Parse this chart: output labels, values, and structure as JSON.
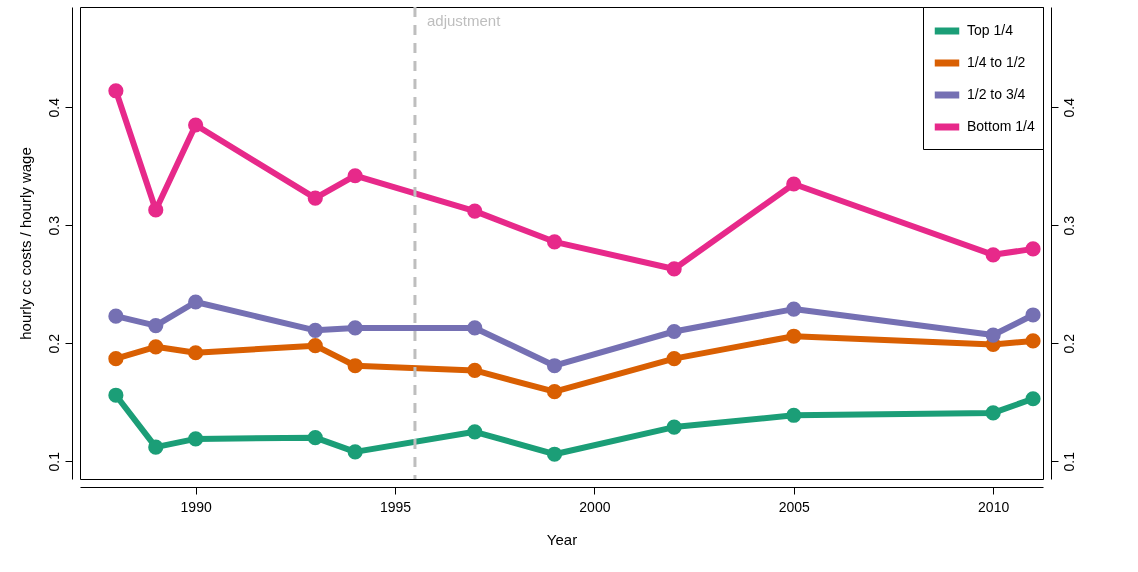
{
  "chart_data": {
    "type": "line",
    "xlabel": "Year",
    "ylabel": "hourly cc costs / hourly wage",
    "x": [
      1988,
      1989,
      1990,
      1993,
      1994,
      1997,
      1999,
      2002,
      2005,
      2010,
      2011
    ],
    "series": [
      {
        "name": "Top 1/4",
        "color": "#1b9e77",
        "values": [
          0.156,
          0.112,
          0.119,
          0.12,
          0.108,
          0.125,
          0.106,
          0.129,
          0.139,
          0.141,
          0.153
        ]
      },
      {
        "name": "1/4 to 1/2",
        "color": "#d95f02",
        "values": [
          0.187,
          0.197,
          0.192,
          0.198,
          0.181,
          0.177,
          0.159,
          0.187,
          0.206,
          0.199,
          0.202
        ]
      },
      {
        "name": "1/2 to 3/4",
        "color": "#7570b3",
        "values": [
          0.223,
          0.215,
          0.235,
          0.211,
          0.213,
          0.213,
          0.181,
          0.21,
          0.229,
          0.207,
          0.224
        ]
      },
      {
        "name": "Bottom 1/4",
        "color": "#e7298a",
        "values": [
          0.414,
          0.313,
          0.385,
          0.323,
          0.342,
          0.312,
          0.286,
          0.263,
          0.335,
          0.275,
          0.28
        ]
      }
    ],
    "xlim": [
      1987.1,
      2011.25
    ],
    "xticks": [
      1990,
      1995,
      2000,
      2005,
      2010
    ],
    "ylim": [
      0.085,
      0.485
    ],
    "yticks": [
      0.1,
      0.2,
      0.3,
      0.4
    ],
    "y2lim": [
      0.085,
      0.485
    ],
    "y2ticks": [
      0.1,
      0.2,
      0.3,
      0.4
    ],
    "ref_lines": [
      {
        "axis": "x",
        "value": 1995.5,
        "label": "adjustment",
        "color": "#bebebe",
        "line_style": "dashed"
      }
    ],
    "legend": "top right",
    "grid": false,
    "marker": "circle",
    "line_style": "solid"
  }
}
